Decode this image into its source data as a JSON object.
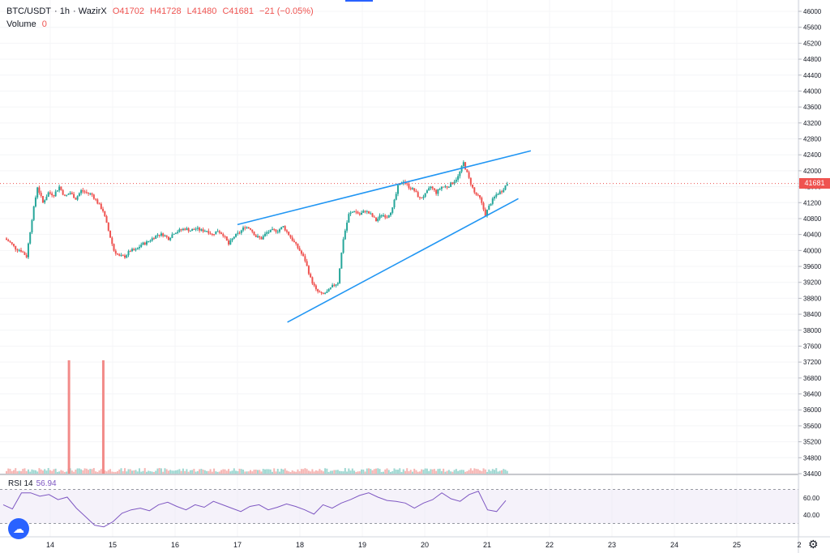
{
  "header": {
    "symbol": "BTC/USDT",
    "interval": "1h",
    "exchange": "WazirX",
    "open": "O41702",
    "high": "H41728",
    "low": "L41480",
    "close": "C41681",
    "change": "−21 (−0.05%)"
  },
  "volume": {
    "label": "Volume",
    "value": "0"
  },
  "rsi": {
    "label": "RSI 14",
    "value": "56.94",
    "levels": [
      "60.00",
      "40.00"
    ]
  },
  "price_badge": "41681",
  "icons": {
    "settings": "gear-icon",
    "logo": "tradingview-logo-icon"
  },
  "colors": {
    "up": "#26a69a",
    "down": "#ef5350",
    "trend": "#2196f3",
    "rsi": "#7e57c2"
  },
  "chart_data": {
    "type": "candlestick",
    "ylim": [
      34400,
      46000
    ],
    "y_ticks": [
      46000,
      45600,
      45200,
      44800,
      44400,
      44000,
      43600,
      43200,
      42800,
      42400,
      42000,
      41600,
      41200,
      40800,
      40400,
      40000,
      39600,
      39200,
      38800,
      38400,
      38000,
      37600,
      37200,
      36800,
      36400,
      36000,
      35600,
      35200,
      34800,
      34400
    ],
    "x_ticks": [
      "14",
      "15",
      "16",
      "17",
      "18",
      "19",
      "20",
      "21",
      "22",
      "23",
      "24",
      "25",
      "2"
    ],
    "trendlines": [
      {
        "from": [
          "17",
          40650
        ],
        "to": [
          "21.7",
          42500
        ]
      },
      {
        "from": [
          "17.8",
          38200
        ],
        "to": [
          "21.5",
          41300
        ]
      }
    ],
    "path": [
      40300,
      40200,
      40050,
      40000,
      39850,
      40800,
      41600,
      41200,
      41450,
      41400,
      41600,
      41350,
      41450,
      41300,
      41500,
      41450,
      41400,
      41200,
      41000,
      40500,
      40000,
      39850,
      39850,
      40000,
      40000,
      40150,
      40200,
      40300,
      40400,
      40400,
      40300,
      40450,
      40500,
      40550,
      40500,
      40550,
      40500,
      40500,
      40400,
      40500,
      40400,
      40150,
      40350,
      40450,
      40600,
      40550,
      40350,
      40300,
      40450,
      40500,
      40500,
      40600,
      40400,
      40200,
      40000,
      39750,
      39300,
      39000,
      38900,
      38950,
      39100,
      39200,
      40300,
      40900,
      41000,
      40900,
      41000,
      40900,
      40750,
      40900,
      40850,
      41050,
      41600,
      41750,
      41600,
      41500,
      41300,
      41400,
      41600,
      41450,
      41600,
      41600,
      41700,
      41850,
      42200,
      41800,
      41450,
      41300,
      40900,
      41200,
      41400,
      41500,
      41681
    ],
    "rsi_values": [
      52,
      47,
      66,
      66,
      62,
      64,
      58,
      61,
      48,
      38,
      28,
      26,
      32,
      42,
      46,
      48,
      45,
      52,
      55,
      50,
      46,
      52,
      49,
      56,
      52,
      48,
      44,
      50,
      52,
      46,
      49,
      53,
      50,
      46,
      41,
      52,
      48,
      54,
      58,
      63,
      66,
      61,
      57,
      56,
      54,
      48,
      54,
      58,
      66,
      59,
      56,
      64,
      68,
      46,
      44,
      56.94
    ],
    "volume_spikes": [
      {
        "x": "14.3",
        "up": false
      },
      {
        "x": "14.85",
        "up": false
      }
    ]
  }
}
